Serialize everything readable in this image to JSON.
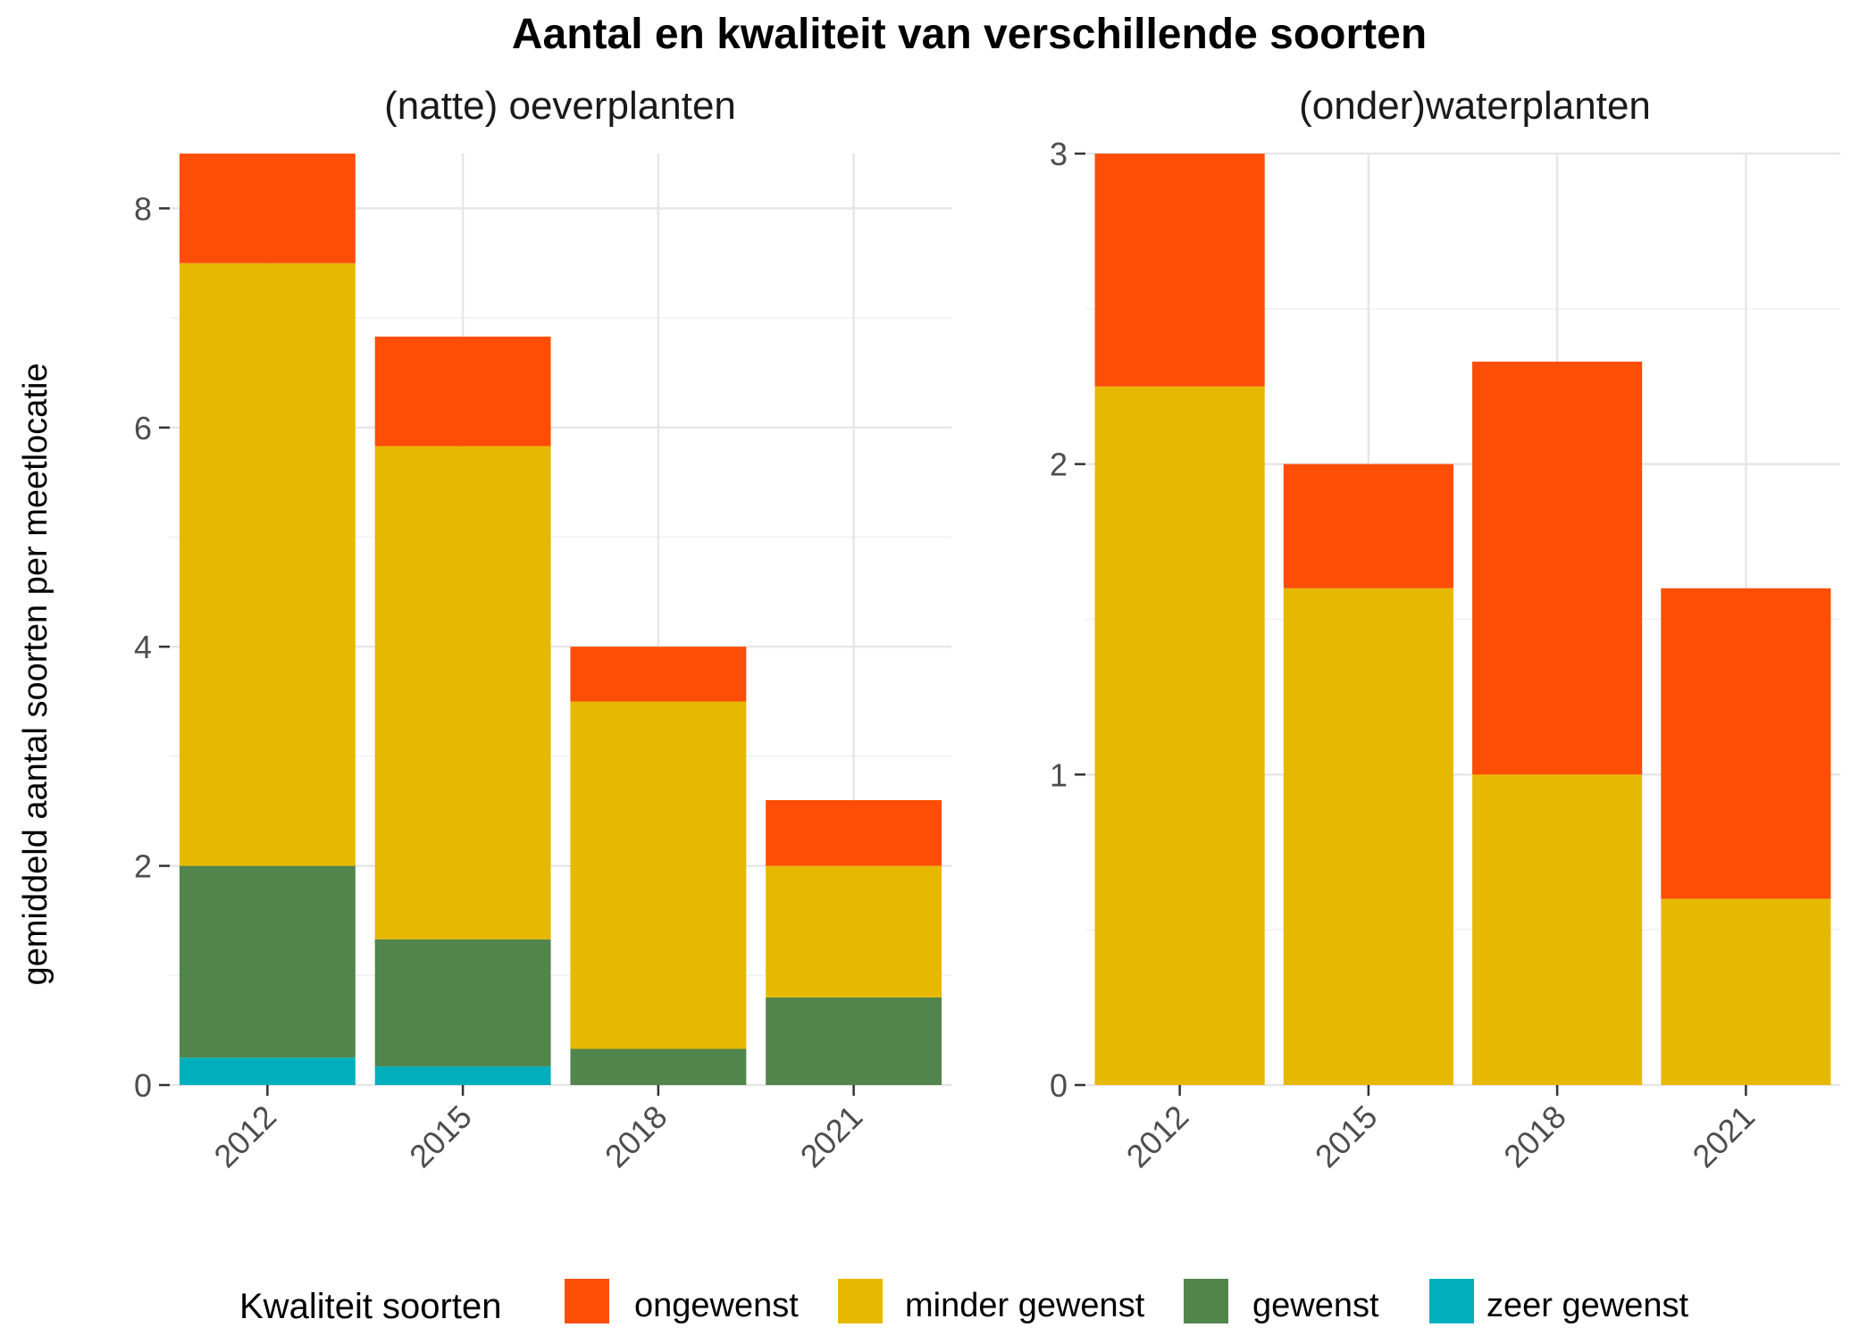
{
  "chart_data": {
    "title": "Aantal en kwaliteit van verschillende soorten",
    "ylabel": "gemiddeld aantal soorten per meetlocatie",
    "legend": {
      "title": "Kwaliteit soorten",
      "position": "bottom",
      "entries": [
        {
          "name": "ongewenst",
          "color": "#FC4E07"
        },
        {
          "name": "minder gewenst",
          "color": "#E7B800"
        },
        {
          "name": "gewenst",
          "color": "#52854C"
        },
        {
          "name": "zeer gewenst",
          "color": "#00AFBB"
        }
      ]
    },
    "panels": [
      {
        "type": "bar",
        "stacked": true,
        "title": "(natte) oeverplanten",
        "categories": [
          "2012",
          "2015",
          "2018",
          "2021"
        ],
        "ylim": [
          0,
          8.5
        ],
        "yticks": [
          0,
          2,
          4,
          6,
          8
        ],
        "grid": true,
        "series": [
          {
            "name": "zeer gewenst",
            "color": "#00AFBB",
            "values": [
              0.25,
              0.17,
              0,
              0
            ]
          },
          {
            "name": "gewenst",
            "color": "#52854C",
            "values": [
              1.75,
              1.16,
              0.33,
              0.8
            ]
          },
          {
            "name": "minder gewenst",
            "color": "#E7B800",
            "values": [
              5.5,
              4.5,
              3.17,
              1.2
            ]
          },
          {
            "name": "ongewenst",
            "color": "#FC4E07",
            "values": [
              1.0,
              1.0,
              0.5,
              0.6
            ]
          }
        ]
      },
      {
        "type": "bar",
        "stacked": true,
        "title": "(onder)waterplanten",
        "categories": [
          "2012",
          "2015",
          "2018",
          "2021"
        ],
        "ylim": [
          0,
          3
        ],
        "yticks": [
          0,
          1,
          2,
          3
        ],
        "grid": true,
        "series": [
          {
            "name": "zeer gewenst",
            "color": "#00AFBB",
            "values": [
              0,
              0,
              0,
              0
            ]
          },
          {
            "name": "gewenst",
            "color": "#52854C",
            "values": [
              0,
              0,
              0,
              0
            ]
          },
          {
            "name": "minder gewenst",
            "color": "#E7B800",
            "values": [
              2.25,
              1.6,
              1.0,
              0.6
            ]
          },
          {
            "name": "ongewenst",
            "color": "#FC4E07",
            "values": [
              0.75,
              0.4,
              1.33,
              1.0
            ]
          }
        ]
      }
    ]
  }
}
